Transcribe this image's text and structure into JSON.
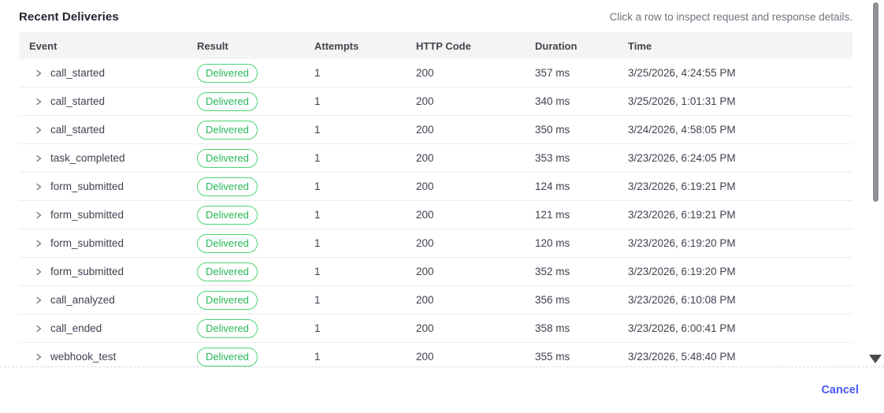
{
  "panel": {
    "title": "Recent Deliveries",
    "hint": "Click a row to inspect request and response details."
  },
  "table": {
    "columns": [
      "Event",
      "Result",
      "Attempts",
      "HTTP Code",
      "Duration",
      "Time"
    ],
    "rows": [
      {
        "event": "call_started",
        "result": "Delivered",
        "attempts": "1",
        "http_code": "200",
        "duration": "357 ms",
        "time": "3/25/2026, 4:24:55 PM"
      },
      {
        "event": "call_started",
        "result": "Delivered",
        "attempts": "1",
        "http_code": "200",
        "duration": "340 ms",
        "time": "3/25/2026, 1:01:31 PM"
      },
      {
        "event": "call_started",
        "result": "Delivered",
        "attempts": "1",
        "http_code": "200",
        "duration": "350 ms",
        "time": "3/24/2026, 4:58:05 PM"
      },
      {
        "event": "task_completed",
        "result": "Delivered",
        "attempts": "1",
        "http_code": "200",
        "duration": "353 ms",
        "time": "3/23/2026, 6:24:05 PM"
      },
      {
        "event": "form_submitted",
        "result": "Delivered",
        "attempts": "1",
        "http_code": "200",
        "duration": "124 ms",
        "time": "3/23/2026, 6:19:21 PM"
      },
      {
        "event": "form_submitted",
        "result": "Delivered",
        "attempts": "1",
        "http_code": "200",
        "duration": "121 ms",
        "time": "3/23/2026, 6:19:21 PM"
      },
      {
        "event": "form_submitted",
        "result": "Delivered",
        "attempts": "1",
        "http_code": "200",
        "duration": "120 ms",
        "time": "3/23/2026, 6:19:20 PM"
      },
      {
        "event": "form_submitted",
        "result": "Delivered",
        "attempts": "1",
        "http_code": "200",
        "duration": "352 ms",
        "time": "3/23/2026, 6:19:20 PM"
      },
      {
        "event": "call_analyzed",
        "result": "Delivered",
        "attempts": "1",
        "http_code": "200",
        "duration": "356 ms",
        "time": "3/23/2026, 6:10:08 PM"
      },
      {
        "event": "call_ended",
        "result": "Delivered",
        "attempts": "1",
        "http_code": "200",
        "duration": "358 ms",
        "time": "3/23/2026, 6:00:41 PM"
      },
      {
        "event": "webhook_test",
        "result": "Delivered",
        "attempts": "1",
        "http_code": "200",
        "duration": "355 ms",
        "time": "3/23/2026, 5:48:40 PM"
      }
    ]
  },
  "footer": {
    "cancel_label": "Cancel"
  },
  "colors": {
    "badge_green": "#34c759",
    "accent_blue": "#4657f2",
    "header_bg": "#f4f4f5"
  }
}
